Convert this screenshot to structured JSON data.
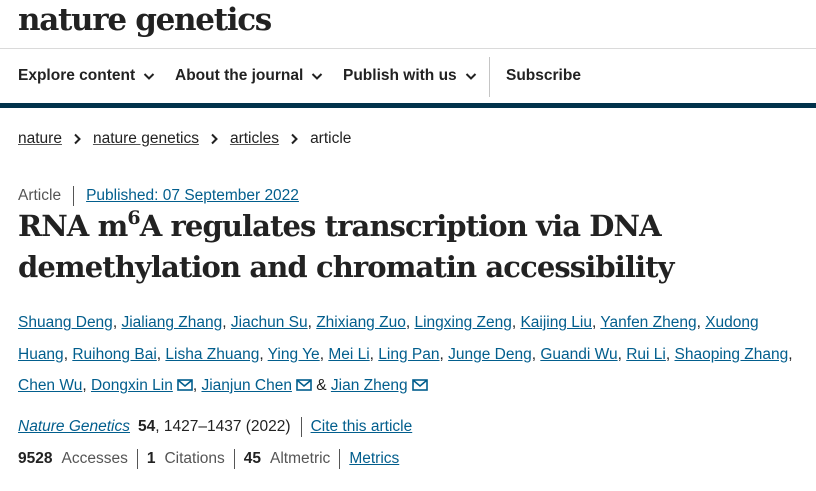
{
  "header": {
    "logo_part1": "nature",
    "logo_part2": "genetics"
  },
  "nav": {
    "items": [
      {
        "label": "Explore content"
      },
      {
        "label": "About the journal"
      },
      {
        "label": "Publish with us"
      }
    ],
    "subscribe_label": "Subscribe"
  },
  "breadcrumb": {
    "items": [
      "nature",
      "nature genetics",
      "articles"
    ],
    "current": "article"
  },
  "article": {
    "type": "Article",
    "published": "Published: 07 September 2022",
    "title_part1": "RNA m",
    "title_sup": "6",
    "title_part2": "A regulates transcription via DNA demethylation and chromatin accessibility",
    "authors": [
      "Shuang Deng",
      "Jialiang Zhang",
      "Jiachun Su",
      "Zhixiang Zuo",
      "Lingxing Zeng",
      "Kaijing Liu",
      "Yanfen Zheng",
      "Xudong Huang",
      "Ruihong Bai",
      "Lisha Zhuang",
      "Ying Ye",
      "Mei Li",
      "Ling Pan",
      "Junge Deng",
      "Guandi Wu",
      "Rui Li",
      "Shaoping Zhang",
      "Chen Wu",
      "Dongxin Lin",
      "Jianjun Chen",
      "Jian Zheng"
    ],
    "ampersand": "&",
    "journal": "Nature Genetics",
    "volume": "54",
    "pages": ", 1427–1437 (2022)",
    "cite_label": "Cite this article"
  },
  "metrics": {
    "accesses_value": "9528",
    "accesses_label": "Accesses",
    "citations_value": "1",
    "citations_label": "Citations",
    "altmetric_value": "45",
    "altmetric_label": "Altmetric",
    "metrics_link": "Metrics"
  },
  "colors": {
    "link": "#025e8d",
    "nav_border": "#01324b",
    "text": "#222222"
  }
}
